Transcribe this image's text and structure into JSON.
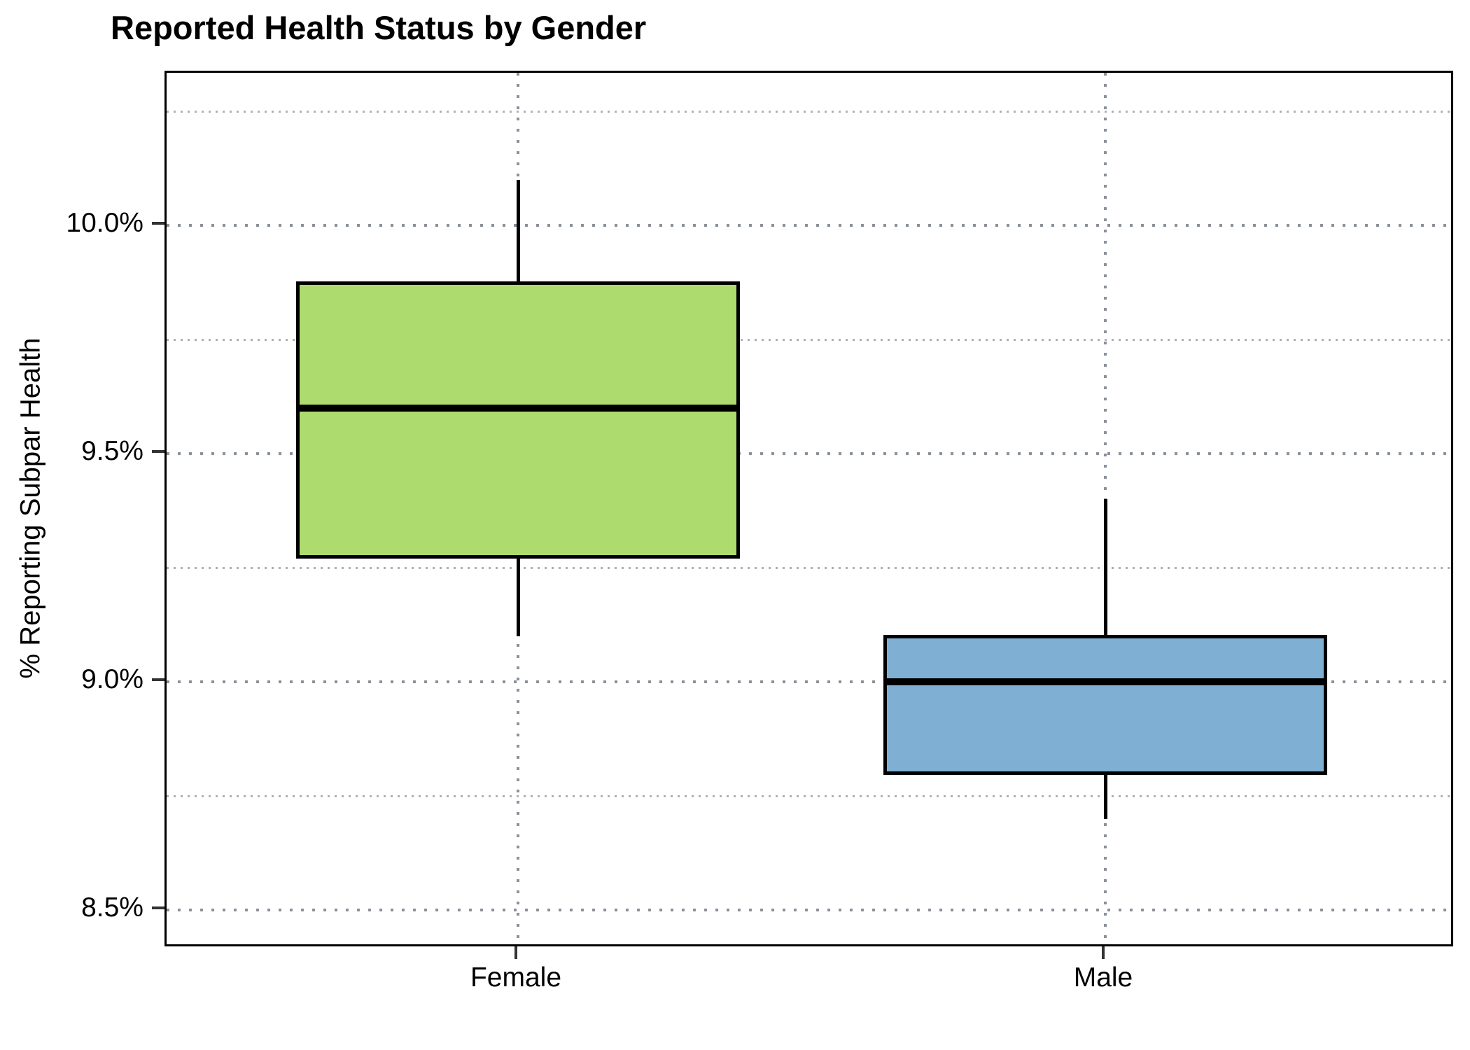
{
  "title": "Reported Health Status by Gender",
  "chart_data": {
    "type": "boxplot",
    "title": "Reported Health Status by Gender",
    "xlabel": "",
    "ylabel": "% Reporting Subpar Health",
    "categories": [
      "Female",
      "Male"
    ],
    "series": [
      {
        "name": "Female",
        "min": 9.1,
        "q1": 9.275,
        "median": 9.6,
        "q3": 9.875,
        "max": 10.1,
        "fill": "#AEDB6D"
      },
      {
        "name": "Male",
        "min": 8.7,
        "q1": 8.8,
        "median": 9.0,
        "q3": 9.1,
        "max": 9.4,
        "fill": "#7FB0D4"
      }
    ],
    "y_axis": {
      "tick_labels": [
        "10.0%",
        "9.5%",
        "9.0%",
        "8.5%"
      ],
      "tick_values": [
        10.0,
        9.5,
        9.0,
        8.5
      ],
      "minor_tick_values": [
        10.25,
        9.75,
        9.25,
        8.75
      ],
      "ylim": [
        8.42,
        10.34
      ],
      "unit": "percent"
    },
    "grid": {
      "horizontal_major": "dotted",
      "horizontal_minor": "dotted",
      "vertical_major_at_categories": "dotted"
    },
    "legend": "none",
    "whisker_caps": false
  },
  "colors": {
    "background": "#FFFFFF",
    "panel_border": "#000000",
    "box_border": "#000000",
    "median_line": "#000000",
    "grid_major": "#8A919B",
    "grid_minor": "#ADB1B8",
    "axis_tick": "#333333",
    "text": "#000000",
    "female_fill": "#AEDB6D",
    "male_fill": "#7FB0D4"
  }
}
